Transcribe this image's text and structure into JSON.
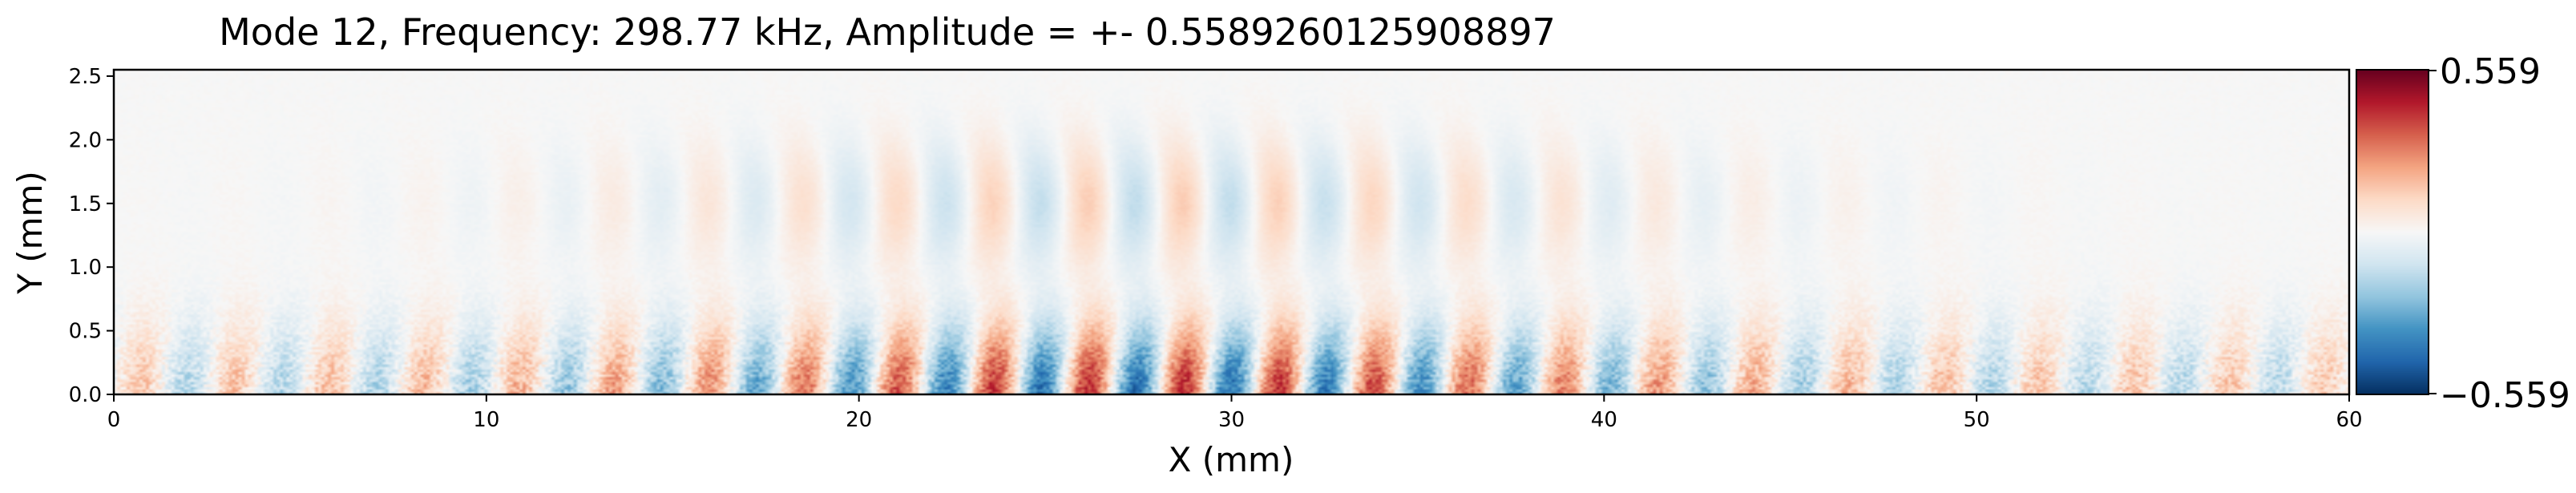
{
  "chart_data": {
    "type": "heatmap",
    "title": "Mode 12, Frequency: 298.77 kHz, Amplitude = +- 0.5589260125908897",
    "xlabel": "X (mm)",
    "ylabel": "Y (mm)",
    "xlim": [
      0,
      60
    ],
    "ylim": [
      0,
      2.55
    ],
    "xticks": [
      0,
      10,
      20,
      30,
      40,
      50,
      60
    ],
    "yticks": [
      0.0,
      0.5,
      1.0,
      1.5,
      2.0,
      2.5
    ],
    "xtick_labels": [
      "0",
      "10",
      "20",
      "30",
      "40",
      "50",
      "60"
    ],
    "ytick_labels": [
      "0.0",
      "0.5",
      "1.0",
      "1.5",
      "2.0",
      "2.5"
    ],
    "colormap": "RdBu_r",
    "vmin": -0.559,
    "vmax": 0.559,
    "colorbar": {
      "max_label": "0.559",
      "min_label": "−0.559"
    },
    "grid": false
  }
}
